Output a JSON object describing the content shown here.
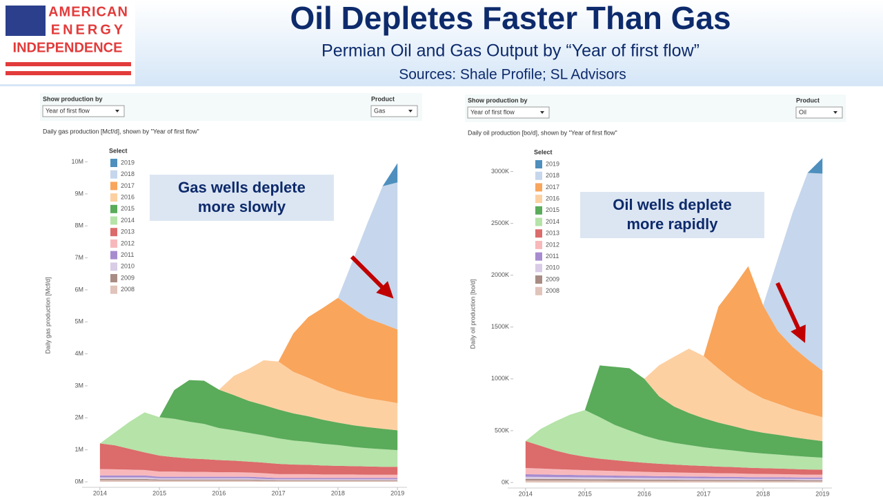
{
  "header": {
    "logo": [
      "AMERICAN",
      "ENERGY",
      "INDEPENDENCE"
    ],
    "title": "Oil Depletes Faster Than Gas",
    "subtitle": "Permian Oil and Gas Output by “Year of first flow”",
    "sources": "Sources: Shale Profile; SL Advisors"
  },
  "chart_data": [
    {
      "type": "stacked-area",
      "show_by_label": "Show production by",
      "show_by_value": "Year of first flow",
      "product_label": "Product",
      "product_value": "Gas",
      "title": "Daily gas production [Mcf/d], shown by \"Year of first flow\"",
      "y_label": "Daily gas production [Mcf/d]",
      "legend_title": "Select",
      "annotation": [
        "Gas wells deplete",
        "more slowly"
      ],
      "x": [
        2014,
        2014.25,
        2014.5,
        2014.75,
        2015,
        2015.25,
        2015.5,
        2015.75,
        2016,
        2016.25,
        2016.5,
        2016.75,
        2017,
        2017.25,
        2017.5,
        2017.75,
        2018,
        2018.25,
        2018.5,
        2018.75,
        2019
      ],
      "xlim": [
        2013.7,
        2019.16
      ],
      "xticks": [
        2014,
        2015,
        2016,
        2017,
        2018,
        2019
      ],
      "ylim": [
        0,
        10.4
      ],
      "yticks": [
        {
          "value": 0,
          "label": "0M"
        },
        {
          "value": 1,
          "label": "1M"
        },
        {
          "value": 2,
          "label": "2M"
        },
        {
          "value": 3,
          "label": "3M"
        },
        {
          "value": 4,
          "label": "4M"
        },
        {
          "value": 5,
          "label": "5M"
        },
        {
          "value": 6,
          "label": "6M"
        },
        {
          "value": 7,
          "label": "7M"
        },
        {
          "value": 8,
          "label": "8M"
        },
        {
          "value": 9,
          "label": "9M"
        },
        {
          "value": 10,
          "label": "10M"
        }
      ],
      "grid": false,
      "series": [
        {
          "name": "2008",
          "color": "#e0c3ba",
          "values": [
            0.05,
            0.05,
            0.05,
            0.05,
            0.04,
            0.04,
            0.04,
            0.04,
            0.04,
            0.04,
            0.04,
            0.03,
            0.03,
            0.03,
            0.03,
            0.03,
            0.03,
            0.03,
            0.03,
            0.03,
            0.03
          ]
        },
        {
          "name": "2009",
          "color": "#a88c84",
          "values": [
            0.04,
            0.04,
            0.04,
            0.04,
            0.03,
            0.03,
            0.03,
            0.03,
            0.03,
            0.03,
            0.03,
            0.03,
            0.02,
            0.02,
            0.02,
            0.02,
            0.02,
            0.02,
            0.02,
            0.02,
            0.02
          ]
        },
        {
          "name": "2010",
          "color": "#d9cce6",
          "values": [
            0.05,
            0.05,
            0.05,
            0.05,
            0.04,
            0.04,
            0.04,
            0.04,
            0.04,
            0.04,
            0.04,
            0.03,
            0.03,
            0.03,
            0.03,
            0.03,
            0.03,
            0.03,
            0.03,
            0.03,
            0.03
          ]
        },
        {
          "name": "2011",
          "color": "#a78bcf",
          "values": [
            0.06,
            0.06,
            0.06,
            0.06,
            0.05,
            0.05,
            0.05,
            0.05,
            0.05,
            0.05,
            0.05,
            0.05,
            0.04,
            0.04,
            0.04,
            0.04,
            0.04,
            0.04,
            0.04,
            0.04,
            0.04
          ]
        },
        {
          "name": "2012",
          "color": "#f8b8bb",
          "values": [
            0.2,
            0.19,
            0.18,
            0.17,
            0.16,
            0.16,
            0.15,
            0.15,
            0.14,
            0.14,
            0.13,
            0.13,
            0.12,
            0.12,
            0.12,
            0.11,
            0.11,
            0.11,
            0.1,
            0.1,
            0.1
          ]
        },
        {
          "name": "2013",
          "color": "#dc6b6b",
          "values": [
            0.8,
            0.75,
            0.65,
            0.55,
            0.5,
            0.45,
            0.42,
            0.4,
            0.38,
            0.36,
            0.34,
            0.33,
            0.32,
            0.3,
            0.29,
            0.28,
            0.27,
            0.26,
            0.26,
            0.25,
            0.25
          ]
        },
        {
          "name": "2014",
          "color": "#b5e3a8",
          "values": [
            0,
            0.4,
            0.85,
            1.25,
            1.2,
            1.2,
            1.15,
            1.1,
            1.0,
            0.95,
            0.9,
            0.85,
            0.8,
            0.75,
            0.72,
            0.68,
            0.65,
            0.6,
            0.57,
            0.55,
            0.52
          ]
        },
        {
          "name": "2015",
          "color": "#5aab5a",
          "values": [
            0,
            0,
            0,
            0,
            0,
            0.9,
            1.3,
            1.35,
            1.2,
            1.1,
            1.0,
            0.95,
            0.9,
            0.85,
            0.8,
            0.75,
            0.7,
            0.68,
            0.66,
            0.64,
            0.62
          ]
        },
        {
          "name": "2016",
          "color": "#fdd0a2",
          "values": [
            0,
            0,
            0,
            0,
            0,
            0,
            0,
            0,
            0,
            0.6,
            1.0,
            1.4,
            1.5,
            1.3,
            1.2,
            1.1,
            1.0,
            0.95,
            0.9,
            0.88,
            0.85
          ]
        },
        {
          "name": "2017",
          "color": "#f9a55b",
          "values": [
            0,
            0,
            0,
            0,
            0,
            0,
            0,
            0,
            0,
            0,
            0,
            0,
            0,
            1.2,
            1.9,
            2.4,
            2.9,
            2.7,
            2.5,
            2.4,
            2.3
          ]
        },
        {
          "name": "2018",
          "color": "#c6d6ec",
          "values": [
            0,
            0,
            0,
            0,
            0,
            0,
            0,
            0,
            0,
            0,
            0,
            0,
            0,
            0,
            0,
            0,
            0,
            1.5,
            3.0,
            4.3,
            4.6
          ]
        },
        {
          "name": "2019",
          "color": "#4e8fbd",
          "values": [
            0,
            0,
            0,
            0,
            0,
            0,
            0,
            0,
            0,
            0,
            0,
            0,
            0,
            0,
            0,
            0,
            0,
            0,
            0,
            0,
            0.6
          ]
        }
      ]
    },
    {
      "type": "stacked-area",
      "show_by_label": "Show production by",
      "show_by_value": "Year of first flow",
      "product_label": "Product",
      "product_value": "Oil",
      "title": "Daily oil production [bo/d], shown by \"Year of first flow\"",
      "y_label": "Daily oil production [bo/d]",
      "legend_title": "Select",
      "annotation": [
        "Oil wells deplete",
        "more rapidly"
      ],
      "x": [
        2014,
        2014.25,
        2014.5,
        2014.75,
        2015,
        2015.25,
        2015.5,
        2015.75,
        2016,
        2016.25,
        2016.5,
        2016.75,
        2017,
        2017.25,
        2017.5,
        2017.75,
        2018,
        2018.25,
        2018.5,
        2018.75,
        2019
      ],
      "xlim": [
        2013.7,
        2019.16
      ],
      "xticks": [
        2014,
        2015,
        2016,
        2017,
        2018,
        2019
      ],
      "ylim": [
        0,
        3250
      ],
      "yticks": [
        {
          "value": 0,
          "label": "0K"
        },
        {
          "value": 500,
          "label": "500K"
        },
        {
          "value": 1000,
          "label": "1000K"
        },
        {
          "value": 1500,
          "label": "1500K"
        },
        {
          "value": 2000,
          "label": "2000K"
        },
        {
          "value": 2500,
          "label": "2500K"
        },
        {
          "value": 3000,
          "label": "3000K"
        }
      ],
      "grid": false,
      "series": [
        {
          "name": "2008",
          "color": "#e0c3ba",
          "values": [
            20,
            20,
            19,
            19,
            18,
            18,
            17,
            17,
            16,
            16,
            15,
            15,
            15,
            14,
            14,
            14,
            13,
            13,
            13,
            12,
            12
          ]
        },
        {
          "name": "2009",
          "color": "#a88c84",
          "values": [
            15,
            15,
            14,
            14,
            14,
            13,
            13,
            13,
            12,
            12,
            12,
            11,
            11,
            11,
            11,
            10,
            10,
            10,
            10,
            10,
            10
          ]
        },
        {
          "name": "2010",
          "color": "#d9cce6",
          "values": [
            20,
            19,
            19,
            18,
            18,
            17,
            17,
            16,
            16,
            15,
            15,
            15,
            14,
            14,
            14,
            13,
            13,
            13,
            12,
            12,
            12
          ]
        },
        {
          "name": "2011",
          "color": "#a78bcf",
          "values": [
            25,
            24,
            23,
            22,
            21,
            21,
            20,
            19,
            19,
            18,
            18,
            17,
            17,
            16,
            16,
            15,
            15,
            15,
            14,
            14,
            14
          ]
        },
        {
          "name": "2012",
          "color": "#f8b8bb",
          "values": [
            60,
            57,
            54,
            51,
            48,
            46,
            44,
            42,
            40,
            38,
            37,
            36,
            35,
            34,
            33,
            32,
            31,
            30,
            29,
            28,
            28
          ]
        },
        {
          "name": "2013",
          "color": "#dc6b6b",
          "values": [
            260,
            220,
            180,
            150,
            130,
            115,
            105,
            95,
            88,
            82,
            76,
            72,
            68,
            64,
            61,
            58,
            56,
            54,
            52,
            50,
            48
          ]
        },
        {
          "name": "2014",
          "color": "#b5e3a8",
          "values": [
            0,
            160,
            280,
            380,
            450,
            400,
            340,
            300,
            260,
            230,
            210,
            195,
            180,
            170,
            160,
            150,
            142,
            135,
            128,
            122,
            116
          ]
        },
        {
          "name": "2015",
          "color": "#5aab5a",
          "values": [
            0,
            0,
            0,
            0,
            0,
            500,
            560,
            600,
            550,
            420,
            350,
            310,
            280,
            255,
            235,
            215,
            200,
            190,
            180,
            170,
            160
          ]
        },
        {
          "name": "2016",
          "color": "#fdd0a2",
          "values": [
            0,
            0,
            0,
            0,
            0,
            0,
            0,
            0,
            0,
            300,
            480,
            620,
            600,
            520,
            440,
            380,
            330,
            300,
            270,
            250,
            230
          ]
        },
        {
          "name": "2017",
          "color": "#f9a55b",
          "values": [
            0,
            0,
            0,
            0,
            0,
            0,
            0,
            0,
            0,
            0,
            0,
            0,
            0,
            600,
            900,
            1200,
            900,
            700,
            600,
            520,
            450
          ]
        },
        {
          "name": "2018",
          "color": "#c6d6ec",
          "values": [
            0,
            0,
            0,
            0,
            0,
            0,
            0,
            0,
            0,
            0,
            0,
            0,
            0,
            0,
            0,
            0,
            0,
            700,
            1300,
            1800,
            1900
          ]
        },
        {
          "name": "2019",
          "color": "#4e8fbd",
          "values": [
            0,
            0,
            0,
            0,
            0,
            0,
            0,
            0,
            0,
            0,
            0,
            0,
            0,
            0,
            0,
            0,
            0,
            0,
            0,
            0,
            150
          ]
        }
      ]
    }
  ]
}
